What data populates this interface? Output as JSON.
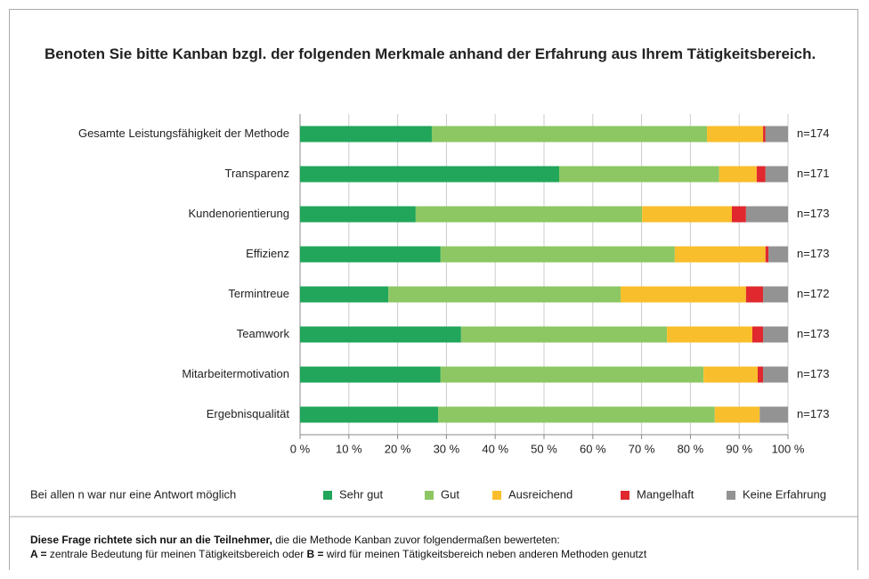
{
  "chart_data": {
    "type": "stacked_bar_horizontal",
    "title": "Benoten Sie bitte Kanban bzgl. der folgenden Merkmale anhand der Erfahrung aus Ihrem Tätigkeitsbereich.",
    "categories": [
      "Gesamte Leistungsfähigkeit der Methode",
      "Transparenz",
      "Kundenorientierung",
      "Effizienz",
      "Termintreue",
      "Teamwork",
      "Mitarbeitermotivation",
      "Ergebnisqualität"
    ],
    "n_labels": [
      "n=174",
      "n=171",
      "n=173",
      "n=173",
      "n=172",
      "n=173",
      "n=173",
      "n=173"
    ],
    "series": [
      {
        "name": "Sehr gut",
        "color": "#21a65b",
        "values": [
          27.0,
          53.1,
          23.7,
          28.8,
          18.1,
          33.0,
          28.8,
          28.3
        ]
      },
      {
        "name": "Gut",
        "color": "#8cc763",
        "values": [
          56.4,
          32.8,
          46.4,
          48.0,
          47.6,
          42.2,
          53.9,
          56.7
        ]
      },
      {
        "name": "Ausreichend",
        "color": "#f9be2b",
        "values": [
          11.5,
          7.7,
          18.4,
          18.6,
          25.7,
          17.5,
          11.1,
          9.2
        ]
      },
      {
        "name": "Mangelhaft",
        "color": "#e0282e",
        "values": [
          0.5,
          1.8,
          2.9,
          0.6,
          3.5,
          2.2,
          1.1,
          0
        ]
      },
      {
        "name": "Keine Erfahrung",
        "color": "#939393",
        "values": [
          4.6,
          4.6,
          8.6,
          4.0,
          5.1,
          5.1,
          5.1,
          5.8
        ]
      }
    ],
    "xlim": [
      0,
      100
    ],
    "xticks": [
      {
        "value": 0,
        "label": "0 %"
      },
      {
        "value": 10,
        "label": "10 %"
      },
      {
        "value": 20,
        "label": "20 %"
      },
      {
        "value": 30,
        "label": "30 %"
      },
      {
        "value": 40,
        "label": "40 %"
      },
      {
        "value": 50,
        "label": "50 %"
      },
      {
        "value": 60,
        "label": "60 %"
      },
      {
        "value": 70,
        "label": "70 %"
      },
      {
        "value": 80,
        "label": "80 %"
      },
      {
        "value": 90,
        "label": "90 %"
      },
      {
        "value": 100,
        "label": "100 %"
      }
    ],
    "grid": true,
    "note": "Bei allen n war nur eine Antwort möglich"
  },
  "footer": {
    "line1": {
      "bold": "Diese Frage richtete sich nur an die Teilnehmer,",
      "text": " die die Methode Kanban zuvor folgendermaßen bewerteten:"
    },
    "line2": {
      "bold_a": "A =",
      "text_a": " zentrale Bedeutung für meinen Tätigkeitsbereich oder ",
      "bold_b": "B =",
      "text_b": " wird für meinen Tätigkeitsbereich neben anderen Methoden genutzt"
    }
  }
}
